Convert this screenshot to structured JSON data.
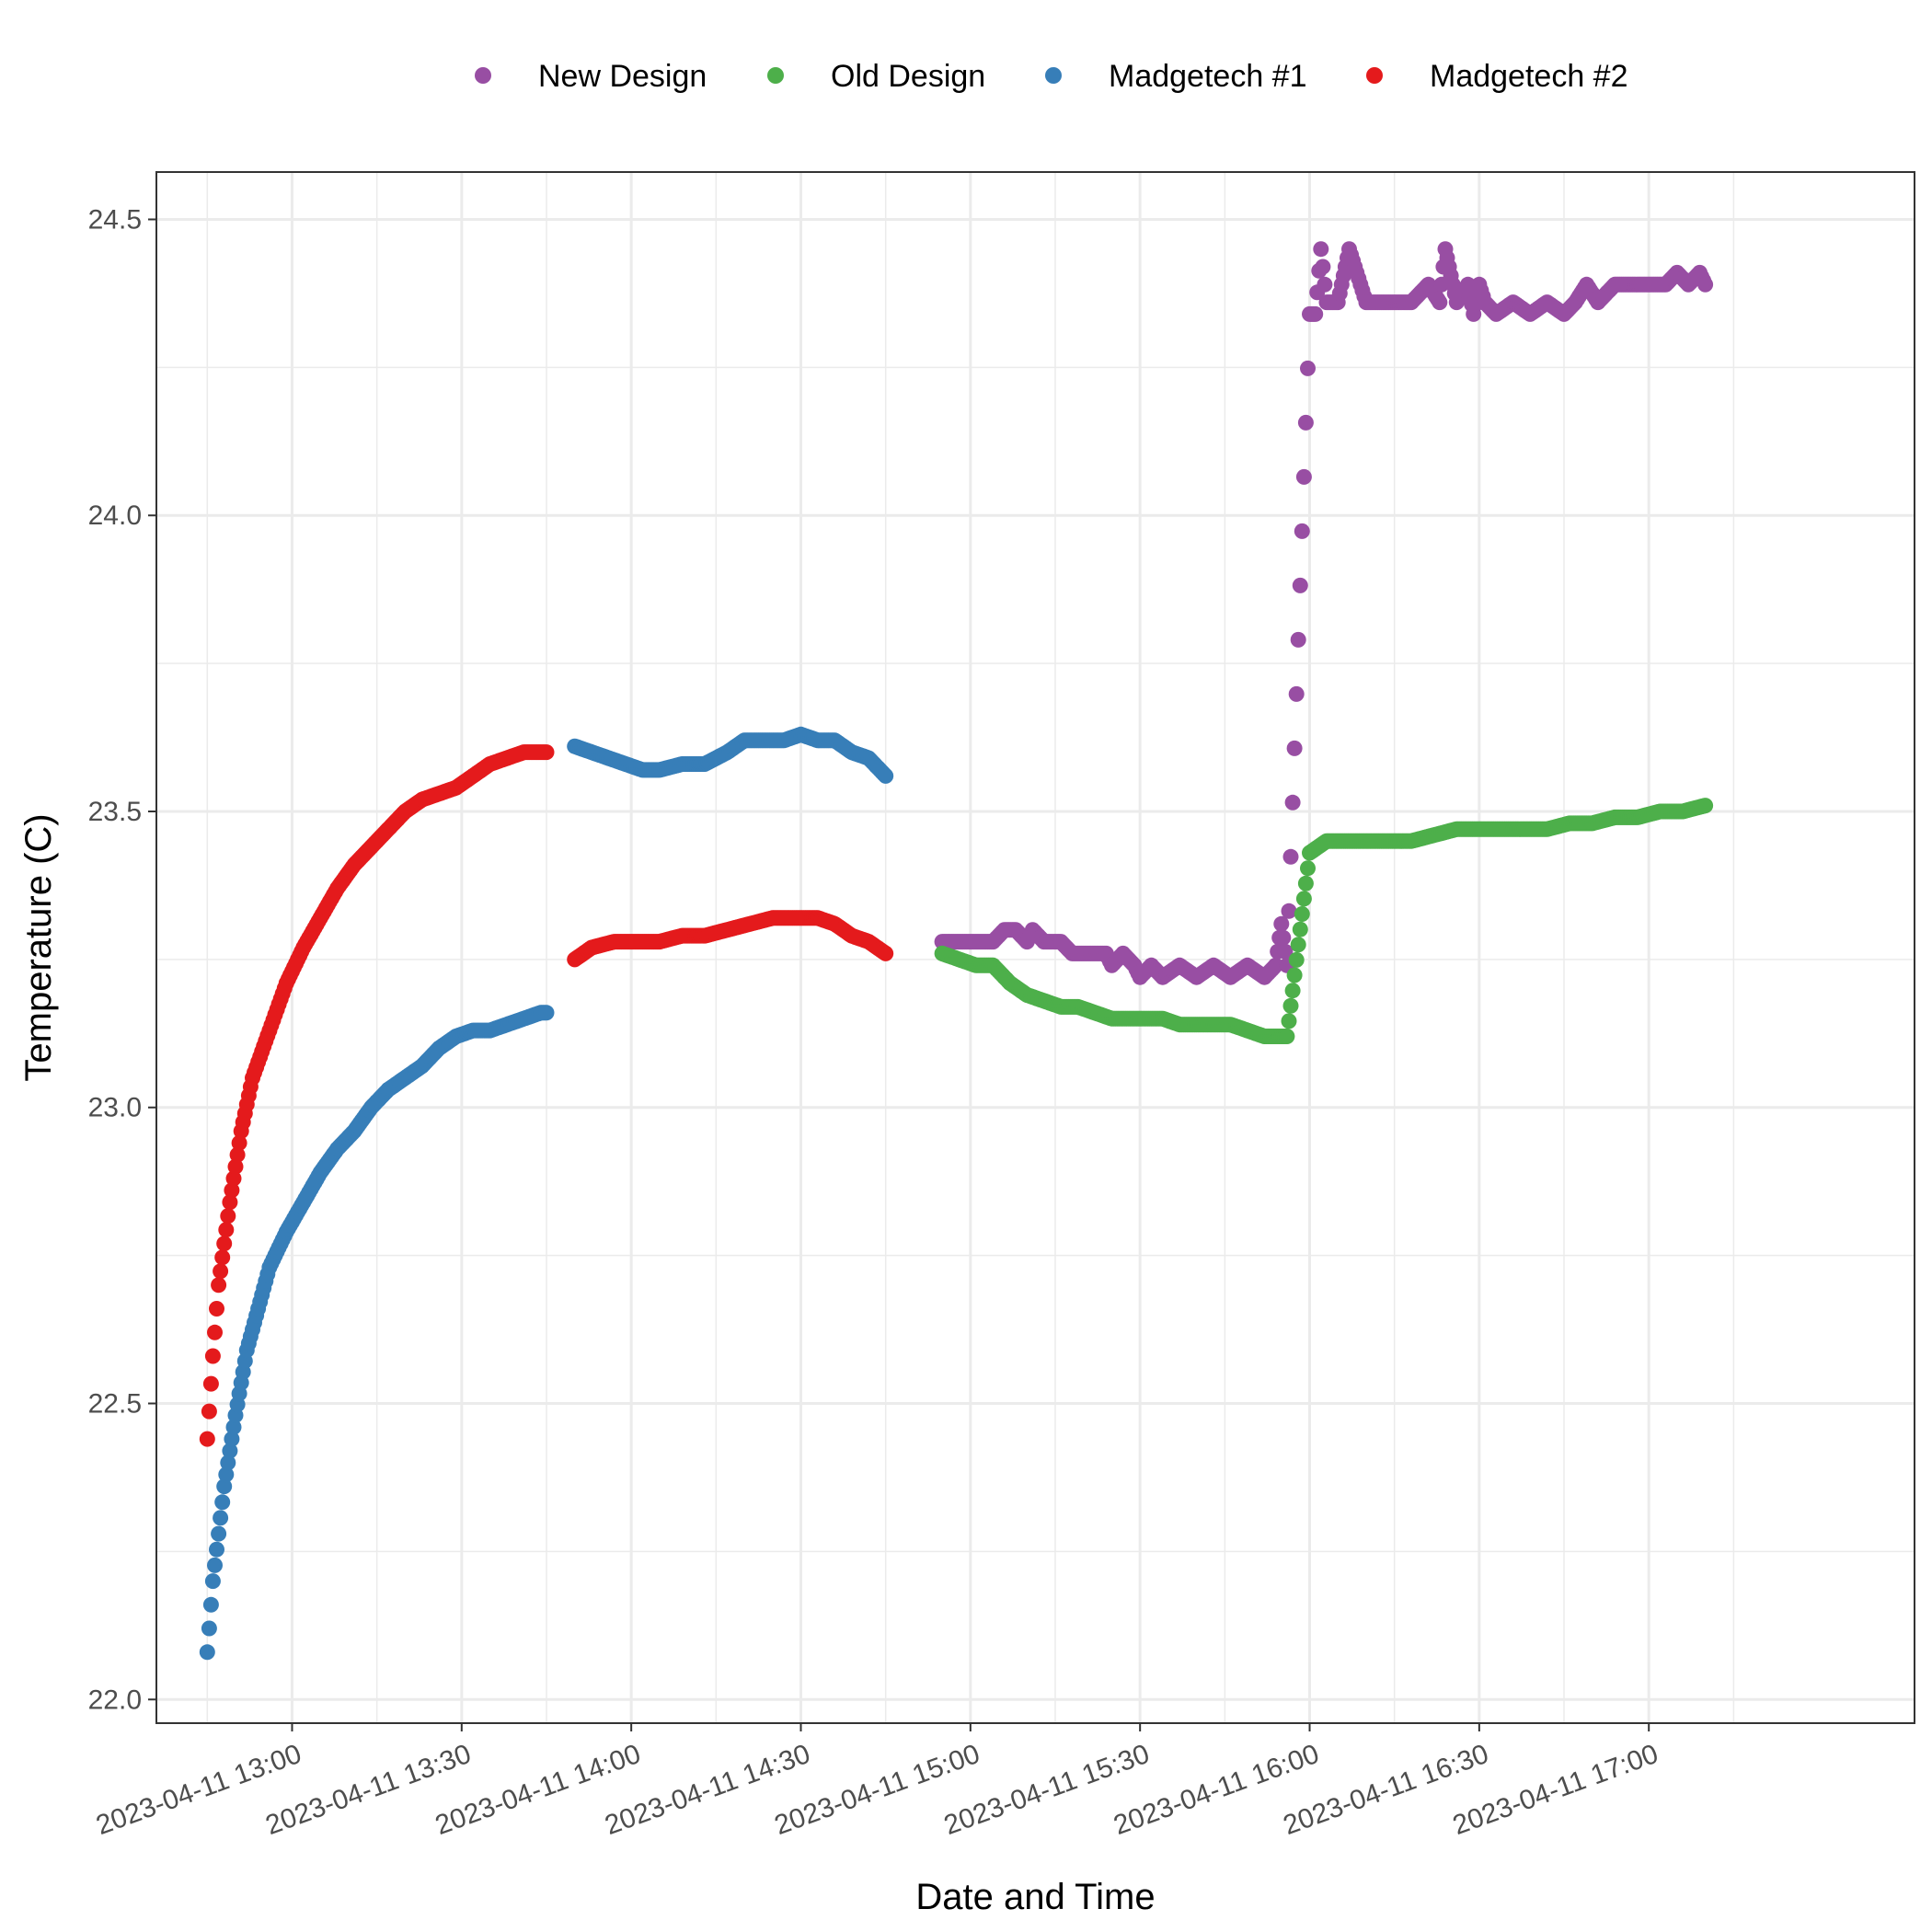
{
  "chart_data": {
    "type": "scatter",
    "title": "",
    "xlabel": "Date and Time",
    "ylabel": "Temperature (C)",
    "x_type": "datetime",
    "xlim": [
      "2023-04-11 12:36",
      "2023-04-11 17:47"
    ],
    "ylim": [
      21.96,
      24.58
    ],
    "x_ticks": [
      "2023-04-11 13:00",
      "2023-04-11 13:30",
      "2023-04-11 14:00",
      "2023-04-11 14:30",
      "2023-04-11 15:00",
      "2023-04-11 15:30",
      "2023-04-11 16:00",
      "2023-04-11 16:30",
      "2023-04-11 17:00"
    ],
    "x_tick_labels": [
      "2023-04-11 13:00",
      "2023-04-11 13:30",
      "2023-04-11 14:00",
      "2023-04-11 14:30",
      "2023-04-11 15:00",
      "2023-04-11 15:30",
      "2023-04-11 16:00",
      "2023-04-11 16:30",
      "2023-04-11 17:00"
    ],
    "y_ticks": [
      22.0,
      22.5,
      23.0,
      23.5,
      24.0,
      24.5
    ],
    "y_tick_labels": [
      "22.0",
      "22.5",
      "23.0",
      "23.5",
      "24.0",
      "24.5"
    ],
    "grid": true,
    "legend_position": "top",
    "series": [
      {
        "name": "New Design",
        "color": "#984EA3",
        "points": [
          [
            "2023-04-11 14:55",
            23.28
          ],
          [
            "2023-04-11 14:58",
            23.28
          ],
          [
            "2023-04-11 15:01",
            23.28
          ],
          [
            "2023-04-11 15:04",
            23.28
          ],
          [
            "2023-04-11 15:06",
            23.3
          ],
          [
            "2023-04-11 15:08",
            23.3
          ],
          [
            "2023-04-11 15:10",
            23.28
          ],
          [
            "2023-04-11 15:11",
            23.3
          ],
          [
            "2023-04-11 15:13",
            23.28
          ],
          [
            "2023-04-11 15:16",
            23.28
          ],
          [
            "2023-04-11 15:18",
            23.26
          ],
          [
            "2023-04-11 15:21",
            23.26
          ],
          [
            "2023-04-11 15:24",
            23.26
          ],
          [
            "2023-04-11 15:25",
            23.24
          ],
          [
            "2023-04-11 15:27",
            23.26
          ],
          [
            "2023-04-11 15:29",
            23.24
          ],
          [
            "2023-04-11 15:30",
            23.22
          ],
          [
            "2023-04-11 15:32",
            23.24
          ],
          [
            "2023-04-11 15:34",
            23.22
          ],
          [
            "2023-04-11 15:37",
            23.24
          ],
          [
            "2023-04-11 15:40",
            23.22
          ],
          [
            "2023-04-11 15:43",
            23.24
          ],
          [
            "2023-04-11 15:46",
            23.22
          ],
          [
            "2023-04-11 15:49",
            23.24
          ],
          [
            "2023-04-11 15:52",
            23.22
          ],
          [
            "2023-04-11 15:54",
            23.24
          ],
          [
            "2023-04-11 15:55",
            23.31
          ],
          [
            "2023-04-11 15:56",
            23.24
          ],
          [
            "2023-04-11 16:00",
            24.34
          ],
          [
            "2023-04-11 16:01",
            24.34
          ],
          [
            "2023-04-11 16:02",
            24.45
          ],
          [
            "2023-04-11 16:03",
            24.36
          ],
          [
            "2023-04-11 16:05",
            24.36
          ],
          [
            "2023-04-11 16:07",
            24.45
          ],
          [
            "2023-04-11 16:10",
            24.36
          ],
          [
            "2023-04-11 16:14",
            24.36
          ],
          [
            "2023-04-11 16:18",
            24.36
          ],
          [
            "2023-04-11 16:21",
            24.39
          ],
          [
            "2023-04-11 16:23",
            24.36
          ],
          [
            "2023-04-11 16:24",
            24.45
          ],
          [
            "2023-04-11 16:26",
            24.36
          ],
          [
            "2023-04-11 16:28",
            24.39
          ],
          [
            "2023-04-11 16:29",
            24.34
          ],
          [
            "2023-04-11 16:30",
            24.39
          ],
          [
            "2023-04-11 16:31",
            24.36
          ],
          [
            "2023-04-11 16:33",
            24.34
          ],
          [
            "2023-04-11 16:36",
            24.36
          ],
          [
            "2023-04-11 16:39",
            24.34
          ],
          [
            "2023-04-11 16:42",
            24.36
          ],
          [
            "2023-04-11 16:45",
            24.34
          ],
          [
            "2023-04-11 16:47",
            24.36
          ],
          [
            "2023-04-11 16:49",
            24.39
          ],
          [
            "2023-04-11 16:51",
            24.36
          ],
          [
            "2023-04-11 16:54",
            24.39
          ],
          [
            "2023-04-11 16:57",
            24.39
          ],
          [
            "2023-04-11 17:00",
            24.39
          ],
          [
            "2023-04-11 17:03",
            24.39
          ],
          [
            "2023-04-11 17:05",
            24.41
          ],
          [
            "2023-04-11 17:07",
            24.39
          ],
          [
            "2023-04-11 17:09",
            24.41
          ],
          [
            "2023-04-11 17:10",
            24.39
          ]
        ]
      },
      {
        "name": "Old Design",
        "color": "#4DAF4A",
        "points": [
          [
            "2023-04-11 14:55",
            23.26
          ],
          [
            "2023-04-11 14:58",
            23.25
          ],
          [
            "2023-04-11 15:01",
            23.24
          ],
          [
            "2023-04-11 15:04",
            23.24
          ],
          [
            "2023-04-11 15:07",
            23.21
          ],
          [
            "2023-04-11 15:10",
            23.19
          ],
          [
            "2023-04-11 15:13",
            23.18
          ],
          [
            "2023-04-11 15:16",
            23.17
          ],
          [
            "2023-04-11 15:19",
            23.17
          ],
          [
            "2023-04-11 15:22",
            23.16
          ],
          [
            "2023-04-11 15:25",
            23.15
          ],
          [
            "2023-04-11 15:28",
            23.15
          ],
          [
            "2023-04-11 15:31",
            23.15
          ],
          [
            "2023-04-11 15:34",
            23.15
          ],
          [
            "2023-04-11 15:37",
            23.14
          ],
          [
            "2023-04-11 15:40",
            23.14
          ],
          [
            "2023-04-11 15:43",
            23.14
          ],
          [
            "2023-04-11 15:46",
            23.14
          ],
          [
            "2023-04-11 15:49",
            23.13
          ],
          [
            "2023-04-11 15:52",
            23.12
          ],
          [
            "2023-04-11 15:56",
            23.12
          ],
          [
            "2023-04-11 16:00",
            23.43
          ],
          [
            "2023-04-11 16:03",
            23.45
          ],
          [
            "2023-04-11 16:06",
            23.45
          ],
          [
            "2023-04-11 16:10",
            23.45
          ],
          [
            "2023-04-11 16:14",
            23.45
          ],
          [
            "2023-04-11 16:18",
            23.45
          ],
          [
            "2023-04-11 16:22",
            23.46
          ],
          [
            "2023-04-11 16:26",
            23.47
          ],
          [
            "2023-04-11 16:30",
            23.47
          ],
          [
            "2023-04-11 16:34",
            23.47
          ],
          [
            "2023-04-11 16:38",
            23.47
          ],
          [
            "2023-04-11 16:42",
            23.47
          ],
          [
            "2023-04-11 16:46",
            23.48
          ],
          [
            "2023-04-11 16:50",
            23.48
          ],
          [
            "2023-04-11 16:54",
            23.49
          ],
          [
            "2023-04-11 16:58",
            23.49
          ],
          [
            "2023-04-11 17:02",
            23.5
          ],
          [
            "2023-04-11 17:06",
            23.5
          ],
          [
            "2023-04-11 17:10",
            23.51
          ]
        ]
      },
      {
        "name": "Madgetech #1",
        "color": "#377EB8",
        "points": [
          [
            "2023-04-11 12:45",
            22.08
          ],
          [
            "2023-04-11 12:46",
            22.2
          ],
          [
            "2023-04-11 12:48",
            22.36
          ],
          [
            "2023-04-11 12:50",
            22.48
          ],
          [
            "2023-04-11 12:52",
            22.59
          ],
          [
            "2023-04-11 12:54",
            22.66
          ],
          [
            "2023-04-11 12:56",
            22.73
          ],
          [
            "2023-04-11 12:59",
            22.79
          ],
          [
            "2023-04-11 13:02",
            22.84
          ],
          [
            "2023-04-11 13:05",
            22.89
          ],
          [
            "2023-04-11 13:08",
            22.93
          ],
          [
            "2023-04-11 13:11",
            22.96
          ],
          [
            "2023-04-11 13:14",
            23.0
          ],
          [
            "2023-04-11 13:17",
            23.03
          ],
          [
            "2023-04-11 13:20",
            23.05
          ],
          [
            "2023-04-11 13:23",
            23.07
          ],
          [
            "2023-04-11 13:26",
            23.1
          ],
          [
            "2023-04-11 13:29",
            23.12
          ],
          [
            "2023-04-11 13:32",
            23.13
          ],
          [
            "2023-04-11 13:35",
            23.13
          ],
          [
            "2023-04-11 13:38",
            23.14
          ],
          [
            "2023-04-11 13:41",
            23.15
          ],
          [
            "2023-04-11 13:44",
            23.16
          ],
          [
            "2023-04-11 13:45",
            23.16
          ],
          [
            "2023-04-11 13:50",
            23.61
          ],
          [
            "2023-04-11 13:53",
            23.6
          ],
          [
            "2023-04-11 13:56",
            23.59
          ],
          [
            "2023-04-11 13:59",
            23.58
          ],
          [
            "2023-04-11 14:02",
            23.57
          ],
          [
            "2023-04-11 14:05",
            23.57
          ],
          [
            "2023-04-11 14:09",
            23.58
          ],
          [
            "2023-04-11 14:13",
            23.58
          ],
          [
            "2023-04-11 14:17",
            23.6
          ],
          [
            "2023-04-11 14:20",
            23.62
          ],
          [
            "2023-04-11 14:23",
            23.62
          ],
          [
            "2023-04-11 14:27",
            23.62
          ],
          [
            "2023-04-11 14:30",
            23.63
          ],
          [
            "2023-04-11 14:33",
            23.62
          ],
          [
            "2023-04-11 14:36",
            23.62
          ],
          [
            "2023-04-11 14:39",
            23.6
          ],
          [
            "2023-04-11 14:42",
            23.59
          ],
          [
            "2023-04-11 14:45",
            23.56
          ]
        ]
      },
      {
        "name": "Madgetech #2",
        "color": "#E41A1C",
        "points": [
          [
            "2023-04-11 12:45",
            22.44
          ],
          [
            "2023-04-11 12:46",
            22.58
          ],
          [
            "2023-04-11 12:47",
            22.7
          ],
          [
            "2023-04-11 12:49",
            22.84
          ],
          [
            "2023-04-11 12:51",
            22.96
          ],
          [
            "2023-04-11 12:53",
            23.05
          ],
          [
            "2023-04-11 12:56",
            23.13
          ],
          [
            "2023-04-11 12:59",
            23.21
          ],
          [
            "2023-04-11 13:02",
            23.27
          ],
          [
            "2023-04-11 13:05",
            23.32
          ],
          [
            "2023-04-11 13:08",
            23.37
          ],
          [
            "2023-04-11 13:11",
            23.41
          ],
          [
            "2023-04-11 13:14",
            23.44
          ],
          [
            "2023-04-11 13:17",
            23.47
          ],
          [
            "2023-04-11 13:20",
            23.5
          ],
          [
            "2023-04-11 13:23",
            23.52
          ],
          [
            "2023-04-11 13:26",
            23.53
          ],
          [
            "2023-04-11 13:29",
            23.54
          ],
          [
            "2023-04-11 13:32",
            23.56
          ],
          [
            "2023-04-11 13:35",
            23.58
          ],
          [
            "2023-04-11 13:38",
            23.59
          ],
          [
            "2023-04-11 13:41",
            23.6
          ],
          [
            "2023-04-11 13:44",
            23.6
          ],
          [
            "2023-04-11 13:45",
            23.6
          ],
          [
            "2023-04-11 13:50",
            23.25
          ],
          [
            "2023-04-11 13:53",
            23.27
          ],
          [
            "2023-04-11 13:57",
            23.28
          ],
          [
            "2023-04-11 14:01",
            23.28
          ],
          [
            "2023-04-11 14:05",
            23.28
          ],
          [
            "2023-04-11 14:09",
            23.29
          ],
          [
            "2023-04-11 14:13",
            23.29
          ],
          [
            "2023-04-11 14:17",
            23.3
          ],
          [
            "2023-04-11 14:21",
            23.31
          ],
          [
            "2023-04-11 14:25",
            23.32
          ],
          [
            "2023-04-11 14:29",
            23.32
          ],
          [
            "2023-04-11 14:33",
            23.32
          ],
          [
            "2023-04-11 14:36",
            23.31
          ],
          [
            "2023-04-11 14:39",
            23.29
          ],
          [
            "2023-04-11 14:42",
            23.28
          ],
          [
            "2023-04-11 14:45",
            23.26
          ]
        ]
      }
    ]
  }
}
